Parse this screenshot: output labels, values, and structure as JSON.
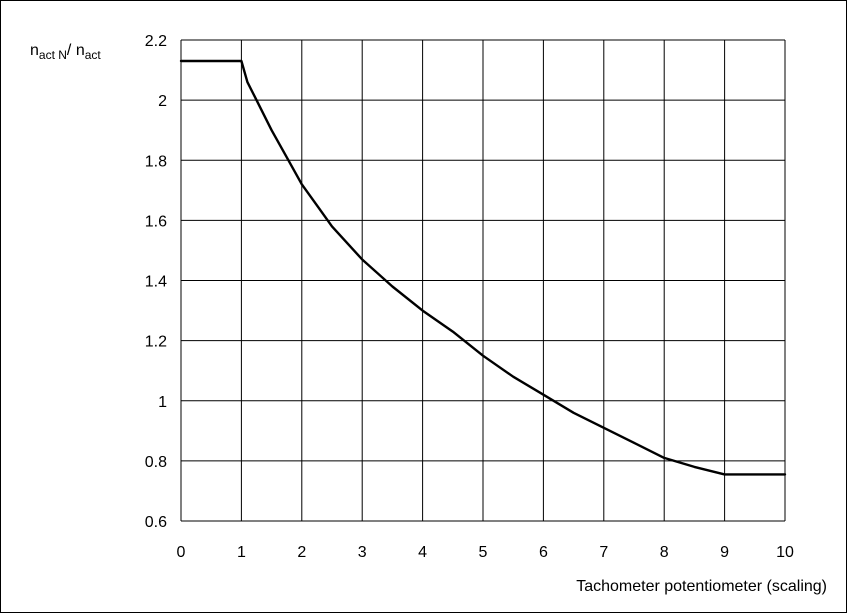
{
  "chart_data": {
    "type": "line",
    "xlabel": "Tachometer potentiometer (scaling)",
    "ylabel": {
      "n1": "n",
      "s1": "act N",
      "sep": "/ ",
      "n2": "n",
      "s2": "act"
    },
    "xlim": [
      0,
      10
    ],
    "ylim": [
      0.6,
      2.2
    ],
    "x_ticks": [
      0,
      1,
      2,
      3,
      4,
      5,
      6,
      7,
      8,
      9,
      10
    ],
    "y_ticks": [
      0.6,
      0.8,
      1,
      1.2,
      1.4,
      1.6,
      1.8,
      2,
      2.2
    ],
    "grid": true,
    "series": [
      {
        "color": "#000000",
        "x": [
          0,
          1,
          1.1,
          1.25,
          1.5,
          1.75,
          2,
          2.25,
          2.5,
          3,
          3.5,
          4,
          4.5,
          5,
          5.5,
          6,
          6.5,
          7,
          7.5,
          8,
          8.5,
          9,
          10
        ],
        "y": [
          2.13,
          2.13,
          2.06,
          2.0,
          1.9,
          1.81,
          1.72,
          1.65,
          1.58,
          1.47,
          1.38,
          1.3,
          1.23,
          1.15,
          1.08,
          1.02,
          0.96,
          0.91,
          0.86,
          0.81,
          0.78,
          0.755,
          0.755
        ]
      }
    ]
  }
}
